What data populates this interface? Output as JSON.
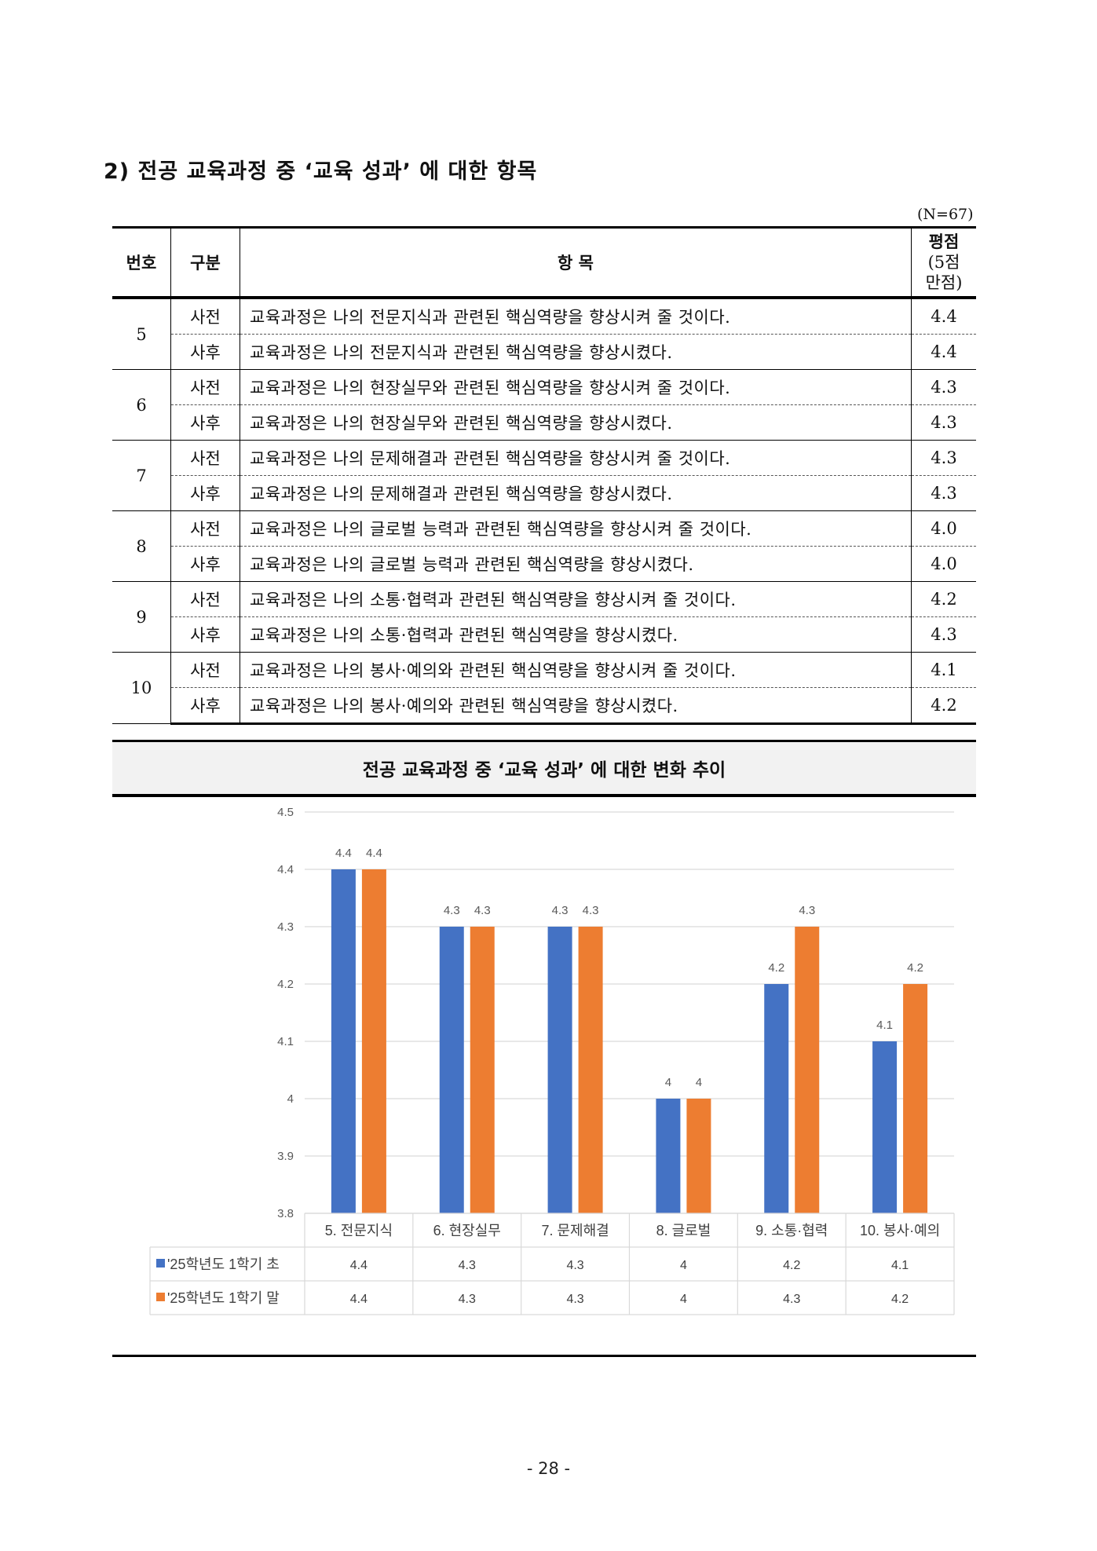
{
  "heading": "2) 전공 교육과정 중 ‘교육 성과’ 에 대한 항목",
  "sample_size": "(N=67)",
  "table": {
    "headers": {
      "number": "번호",
      "division": "구분",
      "item": "항 목",
      "score": "평점",
      "score_sub_1": "(5점",
      "score_sub_2": "만점)"
    },
    "groups": [
      {
        "number": "5",
        "rows": [
          {
            "division": "사전",
            "item": "교육과정은 나의 전문지식과 관련된 핵심역량을 향상시켜 줄 것이다.",
            "score": "4.4"
          },
          {
            "division": "사후",
            "item": "교육과정은 나의 전문지식과 관련된 핵심역량을 향상시켰다.",
            "score": "4.4"
          }
        ]
      },
      {
        "number": "6",
        "rows": [
          {
            "division": "사전",
            "item": "교육과정은 나의 현장실무와 관련된 핵심역량을 향상시켜 줄 것이다.",
            "score": "4.3"
          },
          {
            "division": "사후",
            "item": "교육과정은 나의 현장실무와 관련된 핵심역량을 향상시켰다.",
            "score": "4.3"
          }
        ]
      },
      {
        "number": "7",
        "rows": [
          {
            "division": "사전",
            "item": "교육과정은 나의 문제해결과 관련된 핵심역량을 향상시켜 줄 것이다.",
            "score": "4.3"
          },
          {
            "division": "사후",
            "item": "교육과정은 나의 문제해결과 관련된 핵심역량을 향상시켰다.",
            "score": "4.3"
          }
        ]
      },
      {
        "number": "8",
        "rows": [
          {
            "division": "사전",
            "item": "교육과정은 나의 글로벌 능력과 관련된 핵심역량을 향상시켜 줄 것이다.",
            "score": "4.0"
          },
          {
            "division": "사후",
            "item": "교육과정은 나의 글로벌 능력과 관련된 핵심역량을 향상시켰다.",
            "score": "4.0"
          }
        ]
      },
      {
        "number": "9",
        "rows": [
          {
            "division": "사전",
            "item": "교육과정은 나의 소통·협력과 관련된 핵심역량을 향상시켜 줄 것이다.",
            "score": "4.2"
          },
          {
            "division": "사후",
            "item": "교육과정은 나의 소통·협력과 관련된 핵심역량을 향상시켰다.",
            "score": "4.3"
          }
        ]
      },
      {
        "number": "10",
        "rows": [
          {
            "division": "사전",
            "item": "교육과정은 나의 봉사·예의와 관련된 핵심역량을 향상시켜 줄 것이다.",
            "score": "4.1"
          },
          {
            "division": "사후",
            "item": "교육과정은 나의 봉사·예의와 관련된 핵심역량을 향상시켰다.",
            "score": "4.2"
          }
        ]
      }
    ]
  },
  "chart_banner": "전공 교육과정 중 ‘교육 성과’ 에 대한 변화 추이",
  "chart_data": {
    "type": "bar",
    "categories": [
      "5. 전문지식",
      "6. 현장실무",
      "7. 문제해결",
      "8. 글로벌",
      "9. 소통·협력",
      "10. 봉사·예의"
    ],
    "series": [
      {
        "name": "'25학년도 1학기 초",
        "color": "#4472c4",
        "values": [
          4.4,
          4.3,
          4.3,
          4,
          4.2,
          4.1
        ]
      },
      {
        "name": "'25학년도 1학기 말",
        "color": "#ed7d31",
        "values": [
          4.4,
          4.3,
          4.3,
          4,
          4.3,
          4.2
        ]
      }
    ],
    "ylim": [
      3.8,
      4.5
    ],
    "yticks": [
      4.5,
      4.4,
      4.3,
      4.2,
      4.1,
      4,
      3.9,
      3.8
    ],
    "grid": true,
    "data_labels": true,
    "legend": "data-table"
  },
  "page_number": "- 28 -"
}
